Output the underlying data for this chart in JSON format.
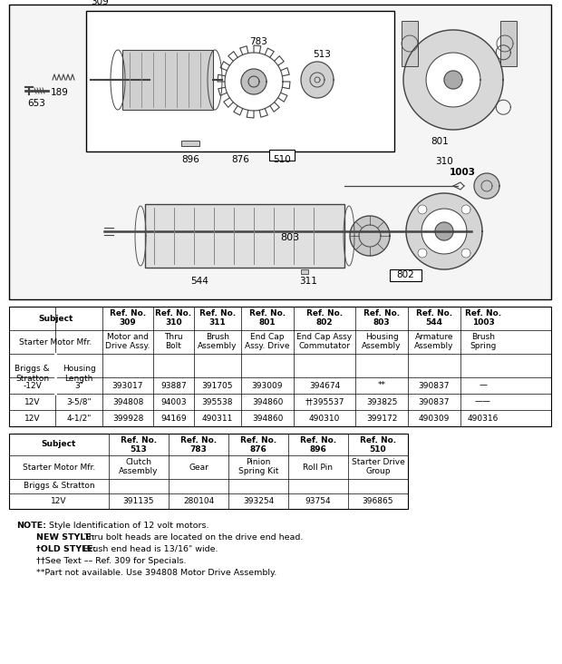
{
  "bg_color": "#ffffff",
  "table1": {
    "data_rows": [
      [
        "‑12V",
        "3\"",
        "393017",
        "93887",
        "391705",
        "393009",
        "394674",
        "**",
        "390837",
        "—"
      ],
      [
        "12V",
        "3-5/8\"",
        "394808",
        "94003",
        "395538",
        "394860",
        "††395537",
        "393825",
        "390837",
        "——"
      ],
      [
        "12V",
        "4-1/2\"",
        "399928",
        "94169",
        "490311",
        "394860",
        "490310",
        "399172",
        "490309",
        "490316"
      ]
    ]
  },
  "table2": {
    "data_rows": [
      [
        "12V",
        "391135",
        "280104",
        "393254",
        "93754",
        "396865"
      ]
    ]
  }
}
